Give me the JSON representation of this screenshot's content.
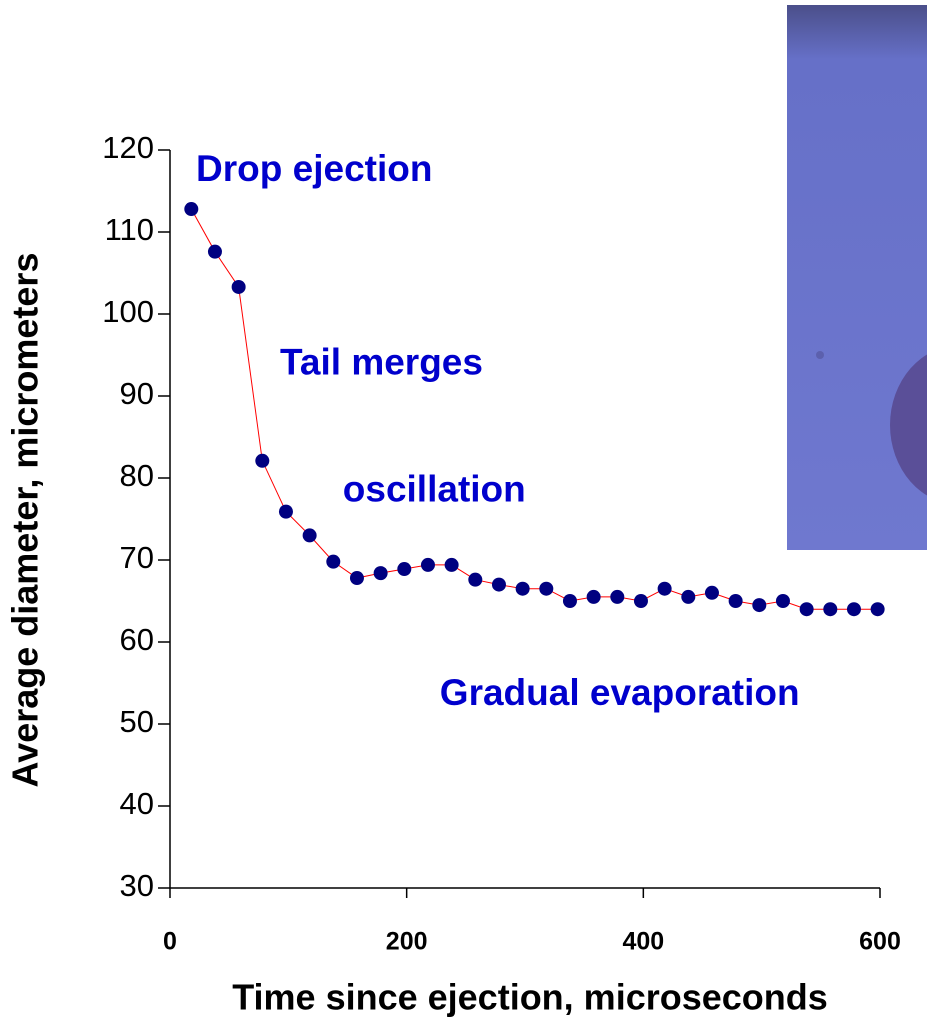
{
  "chart_data": {
    "type": "line",
    "x_label": "Time since ejection, microseconds",
    "y_label": "Average diameter, micrometers",
    "annotations": [
      {
        "text": "Drop ejection",
        "x": 22,
        "y": 117.4
      },
      {
        "text": "Tail merges",
        "x": 93,
        "y": 93.8
      },
      {
        "text": "oscillation",
        "x": 146,
        "y": 78.3
      },
      {
        "text": "Gradual evaporation",
        "x": 228,
        "y": 53.5
      }
    ],
    "x": [
      18,
      38,
      58,
      78,
      98,
      118,
      138,
      158,
      178,
      198,
      218,
      238,
      258,
      278,
      298,
      318,
      338,
      358,
      378,
      398,
      418,
      438,
      458,
      478,
      498,
      518,
      538,
      558,
      578,
      598
    ],
    "series": [
      {
        "color": "#000080",
        "line_color": "#ff0000",
        "values": [
          112.8,
          107.6,
          103.3,
          82.1,
          75.9,
          73.0,
          69.8,
          67.8,
          68.4,
          68.9,
          69.4,
          69.4,
          67.6,
          67.0,
          66.5,
          66.5,
          65.0,
          65.5,
          65.5,
          65.0,
          66.5,
          65.5,
          66.0,
          65.0,
          64.5,
          65.0,
          64.0,
          64.0,
          64.0,
          64.0
        ]
      }
    ],
    "xlim": [
      0,
      600
    ],
    "xticks": [
      0,
      200,
      400,
      600
    ],
    "ylim": [
      30,
      120
    ],
    "yticks": [
      30,
      40,
      50,
      60,
      70,
      80,
      90,
      100,
      110,
      120
    ]
  }
}
